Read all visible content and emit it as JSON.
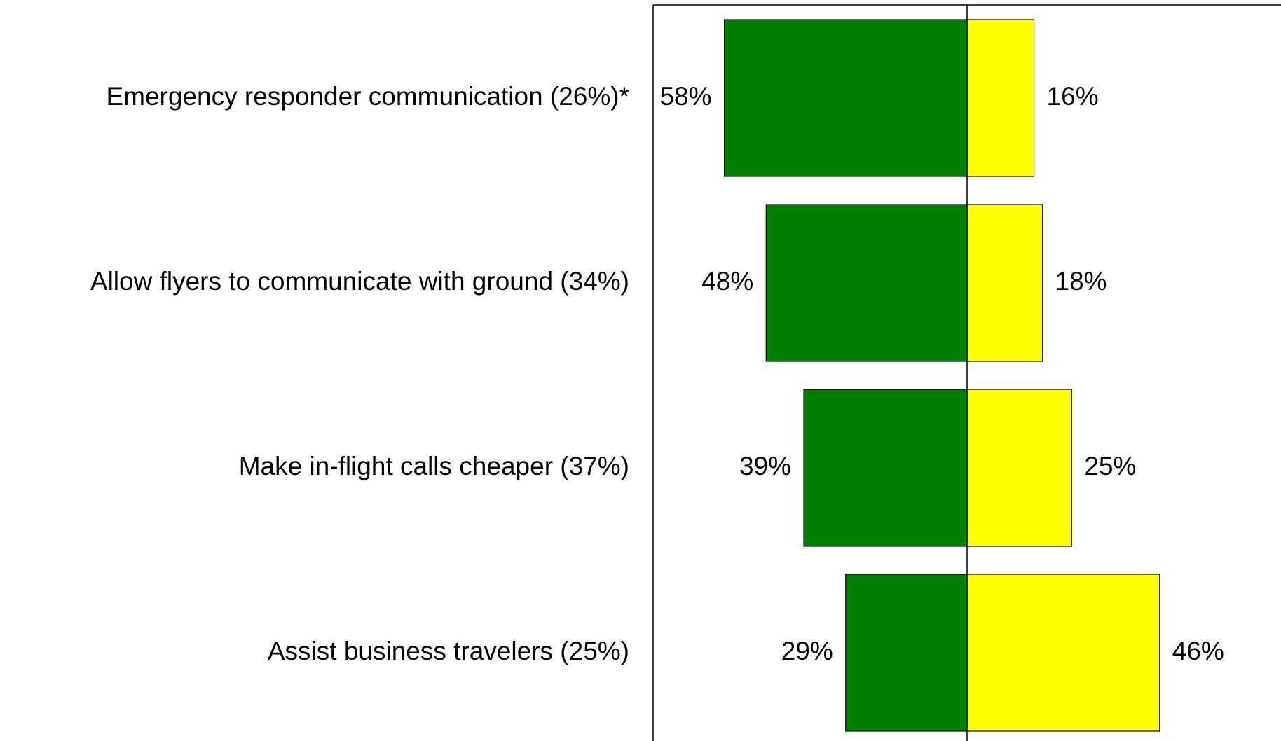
{
  "chart_data": {
    "type": "diverging_bar",
    "categories": [
      "Emergency responder communication (26%)*",
      "Allow flyers to communicate with ground (34%)",
      "Make in-flight calls cheaper (37%)",
      "Assist business travelers (25%)"
    ],
    "series": [
      {
        "color": "#008000",
        "side": "left",
        "values": [
          58,
          48,
          39,
          29
        ],
        "value_labels": [
          "58%",
          "48%",
          "39%",
          "29%"
        ]
      },
      {
        "color": "#ffff00",
        "side": "right",
        "values": [
          16,
          18,
          25,
          46
        ],
        "value_labels": [
          "16%",
          "18%",
          "25%",
          "46%"
        ]
      }
    ],
    "xlim": [
      -75,
      75
    ]
  }
}
